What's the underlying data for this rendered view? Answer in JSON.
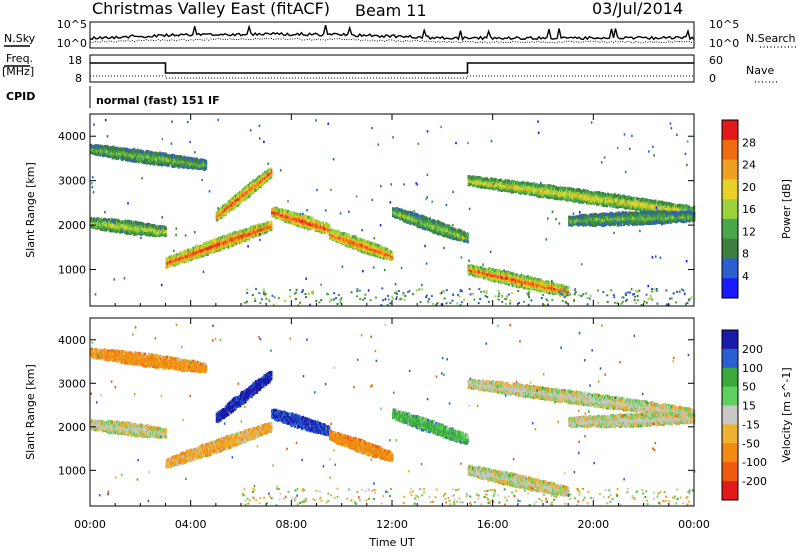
{
  "header": {
    "title": "Christmas Valley East (fitACF)",
    "beam": "Beam 11",
    "date": "03/Jul/2014"
  },
  "strips": {
    "nsky_label": "N.Sky",
    "nsearch_label": "N.Search",
    "nsky_ticks": [
      "10^5",
      "10^0"
    ],
    "nsearch_ticks": [
      "10^5",
      "10^0"
    ],
    "freq_label": [
      "Freq.",
      "[MHz]"
    ],
    "freq_ticks": [
      "18",
      "8"
    ],
    "nave_label": "Nave",
    "nave_ticks": [
      "60",
      "0"
    ],
    "cpid_label": "CPID",
    "cpid_text": "normal (fast) 151 IF"
  },
  "colors": {
    "power": [
      "#1a1aff",
      "#2b5fd0",
      "#3d7f3d",
      "#4aa84a",
      "#9bd13a",
      "#e8d22a",
      "#f0a020",
      "#f06a10",
      "#e21a1a"
    ],
    "velocity": [
      "#e21a1a",
      "#f05a10",
      "#f08a10",
      "#f0b030",
      "#c8c8c4",
      "#60d060",
      "#3aa83a",
      "#2a5fd0",
      "#1a1aaa"
    ]
  },
  "chart_data": [
    {
      "type": "heatmap",
      "quantity": "Power",
      "xlabel": "",
      "ylabel": "Slant Range [km]",
      "colorbar_label": "Power [dB]",
      "colorbar_ticks": [
        "28",
        "24",
        "20",
        "16",
        "12",
        "8",
        "4"
      ],
      "x_ticks": [
        "00:00",
        "04:00",
        "08:00",
        "12:00",
        "16:00",
        "20:00",
        "00:00"
      ],
      "y_ticks": [
        "4000",
        "3000",
        "2000",
        "1000"
      ],
      "xlim_hours": [
        0,
        24
      ],
      "ylim_km": [
        180,
        4500
      ],
      "clim_db": [
        0,
        32
      ],
      "echo_bands": [
        {
          "t_start_h": 0.0,
          "t_end_h": 3.0,
          "range_start_km": 2050,
          "range_end_km": 1850,
          "peak_db": 18
        },
        {
          "t_start_h": 0.0,
          "t_end_h": 4.6,
          "range_start_km": 3700,
          "range_end_km": 3350,
          "peak_db": 14
        },
        {
          "t_start_h": 3.0,
          "t_end_h": 7.2,
          "range_start_km": 1150,
          "range_end_km": 2000,
          "peak_db": 30
        },
        {
          "t_start_h": 5.0,
          "t_end_h": 7.2,
          "range_start_km": 2200,
          "range_end_km": 3200,
          "peak_db": 28
        },
        {
          "t_start_h": 7.2,
          "t_end_h": 9.5,
          "range_start_km": 2300,
          "range_end_km": 1900,
          "peak_db": 30
        },
        {
          "t_start_h": 9.5,
          "t_end_h": 12.0,
          "range_start_km": 1800,
          "range_end_km": 1300,
          "peak_db": 28
        },
        {
          "t_start_h": 12.0,
          "t_end_h": 15.0,
          "range_start_km": 2300,
          "range_end_km": 1700,
          "peak_db": 16
        },
        {
          "t_start_h": 15.0,
          "t_end_h": 19.0,
          "range_start_km": 1000,
          "range_end_km": 500,
          "peak_db": 28
        },
        {
          "t_start_h": 15.0,
          "t_end_h": 24.0,
          "range_start_km": 3000,
          "range_end_km": 2300,
          "peak_db": 20
        },
        {
          "t_start_h": 19.0,
          "t_end_h": 24.0,
          "range_start_km": 2100,
          "range_end_km": 2200,
          "peak_db": 14
        }
      ]
    },
    {
      "type": "heatmap",
      "quantity": "Velocity",
      "xlabel": "Time UT",
      "ylabel": "Slant Range [km]",
      "colorbar_label": "Velocity [m s^-1]",
      "colorbar_ticks": [
        "200",
        "100",
        "50",
        "15",
        "-15",
        "-50",
        "-100",
        "-200"
      ],
      "x_ticks": [
        "00:00",
        "04:00",
        "08:00",
        "12:00",
        "16:00",
        "20:00",
        "00:00"
      ],
      "y_ticks": [
        "4000",
        "3000",
        "2000",
        "1000"
      ],
      "xlim_hours": [
        0,
        24
      ],
      "ylim_km": [
        180,
        4500
      ],
      "clim_ms": [
        -250,
        250
      ],
      "echo_bands": [
        {
          "t_start_h": 0.0,
          "t_end_h": 3.0,
          "range_start_km": 2050,
          "range_end_km": 1850,
          "vel_ms": 0
        },
        {
          "t_start_h": 0.0,
          "t_end_h": 4.6,
          "range_start_km": 3700,
          "range_end_km": 3350,
          "vel_ms": -60
        },
        {
          "t_start_h": 3.0,
          "t_end_h": 7.2,
          "range_start_km": 1150,
          "range_end_km": 2000,
          "vel_ms": -40
        },
        {
          "t_start_h": 5.0,
          "t_end_h": 7.2,
          "range_start_km": 2200,
          "range_end_km": 3200,
          "vel_ms": 220
        },
        {
          "t_start_h": 7.2,
          "t_end_h": 9.5,
          "range_start_km": 2300,
          "range_end_km": 1900,
          "vel_ms": 200
        },
        {
          "t_start_h": 9.5,
          "t_end_h": 12.0,
          "range_start_km": 1800,
          "range_end_km": 1300,
          "vel_ms": -70
        },
        {
          "t_start_h": 12.0,
          "t_end_h": 15.0,
          "range_start_km": 2300,
          "range_end_km": 1700,
          "vel_ms": 60
        },
        {
          "t_start_h": 15.0,
          "t_end_h": 19.0,
          "range_start_km": 1000,
          "range_end_km": 500,
          "vel_ms": 0
        },
        {
          "t_start_h": 15.0,
          "t_end_h": 24.0,
          "range_start_km": 3000,
          "range_end_km": 2300,
          "vel_ms": 0
        },
        {
          "t_start_h": 19.0,
          "t_end_h": 24.0,
          "range_start_km": 2100,
          "range_end_km": 2200,
          "vel_ms": 0
        }
      ]
    }
  ]
}
